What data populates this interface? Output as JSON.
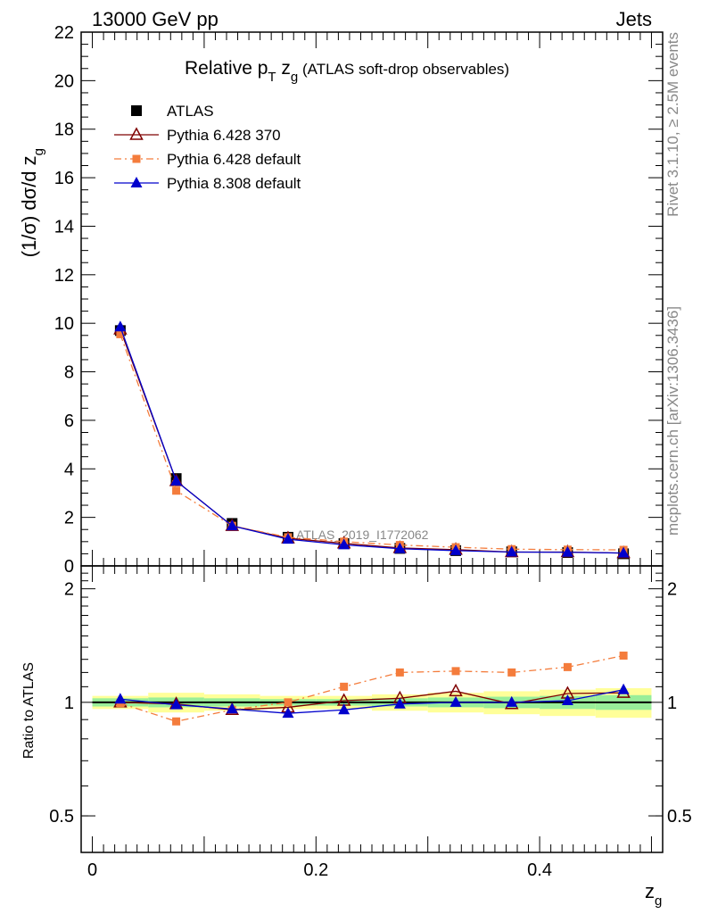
{
  "header": {
    "left": "13000 GeV pp",
    "right": "Jets"
  },
  "side_labels": {
    "rivet": "Rivet 3.1.10, ≥ 2.5M events",
    "mcplots": "mcplots.cern.ch [arXiv:1306.3436]"
  },
  "chart_data": [
    {
      "type": "line",
      "panel": "main",
      "title": "Relative pT zg (ATLAS soft-drop observables)",
      "title_parts": {
        "pre": "Relative p",
        "sub1": "T",
        "mid": " z",
        "sub2": "g",
        "post": " (ATLAS soft-drop observables)"
      },
      "ylabel": "(1/σ) dσ/d z",
      "ylabel_sub": "g",
      "ylim": [
        0,
        22
      ],
      "yticks": [
        0,
        2,
        4,
        6,
        8,
        10,
        12,
        14,
        16,
        18,
        20,
        22
      ],
      "xlim": [
        -0.01,
        0.51
      ],
      "x": [
        0.025,
        0.075,
        0.125,
        0.175,
        0.225,
        0.275,
        0.325,
        0.375,
        0.425,
        0.475
      ],
      "watermark": "ATLAS_2019_I1772062",
      "legend_position": "top-left",
      "series": [
        {
          "name": "ATLAS",
          "color": "#000000",
          "marker": "square",
          "line": "none",
          "values": [
            9.7,
            3.6,
            1.75,
            1.18,
            0.92,
            0.72,
            0.63,
            0.58,
            0.55,
            0.5
          ]
        },
        {
          "name": "Pythia 6.428 370",
          "color": "#7f0000",
          "marker": "triangle-open",
          "line": "solid",
          "values": [
            9.75,
            3.5,
            1.65,
            1.14,
            0.93,
            0.74,
            0.67,
            0.57,
            0.57,
            0.53
          ]
        },
        {
          "name": "Pythia 6.428 default",
          "color": "#f47c3c",
          "marker": "square-small",
          "line": "dashdot",
          "values": [
            9.55,
            3.1,
            1.65,
            1.18,
            1.0,
            0.86,
            0.77,
            0.69,
            0.67,
            0.66
          ]
        },
        {
          "name": "Pythia 8.308 default",
          "color": "#0000cc",
          "marker": "triangle",
          "line": "solid",
          "values": [
            9.85,
            3.5,
            1.65,
            1.1,
            0.87,
            0.71,
            0.63,
            0.57,
            0.56,
            0.53
          ]
        }
      ]
    },
    {
      "type": "line",
      "panel": "ratio",
      "ylabel": "Ratio to ATLAS",
      "xlabel": "z",
      "xlabel_sub": "g",
      "ylim": [
        0.4,
        2.3
      ],
      "yticks": [
        0.5,
        1,
        2
      ],
      "ytick_labels": [
        "0.5",
        "1",
        "2"
      ],
      "xticks": [
        0,
        0.2,
        0.4
      ],
      "xtick_labels": [
        "0",
        "0.2",
        "0.4"
      ],
      "xlim": [
        -0.01,
        0.51
      ],
      "x": [
        0.025,
        0.075,
        0.125,
        0.175,
        0.225,
        0.275,
        0.325,
        0.375,
        0.425,
        0.475
      ],
      "bands": {
        "edges": [
          0.0,
          0.05,
          0.1,
          0.15,
          0.2,
          0.25,
          0.3,
          0.35,
          0.4,
          0.45,
          0.5
        ],
        "yellow_halfwidth": [
          0.04,
          0.06,
          0.05,
          0.04,
          0.04,
          0.05,
          0.06,
          0.07,
          0.08,
          0.09
        ],
        "green_halfwidth": [
          0.025,
          0.03,
          0.025,
          0.02,
          0.02,
          0.025,
          0.03,
          0.035,
          0.04,
          0.045
        ],
        "yellow_color": "#ffff99",
        "green_color": "#99ee99"
      },
      "series": [
        {
          "name": "Pythia 6.428 370",
          "color": "#7f0000",
          "marker": "triangle-open",
          "line": "solid",
          "values": [
            1.0,
            0.99,
            0.955,
            0.97,
            1.01,
            1.025,
            1.07,
            0.99,
            1.055,
            1.06
          ]
        },
        {
          "name": "Pythia 6.428 default",
          "color": "#f47c3c",
          "marker": "square-small",
          "line": "dashdot",
          "values": [
            0.995,
            0.89,
            0.955,
            1.0,
            1.1,
            1.2,
            1.21,
            1.2,
            1.24,
            1.33
          ]
        },
        {
          "name": "Pythia 8.308 default",
          "color": "#0000cc",
          "marker": "triangle",
          "line": "solid",
          "values": [
            1.02,
            0.985,
            0.96,
            0.935,
            0.955,
            0.99,
            1.0,
            1.0,
            1.01,
            1.08
          ]
        }
      ]
    }
  ]
}
